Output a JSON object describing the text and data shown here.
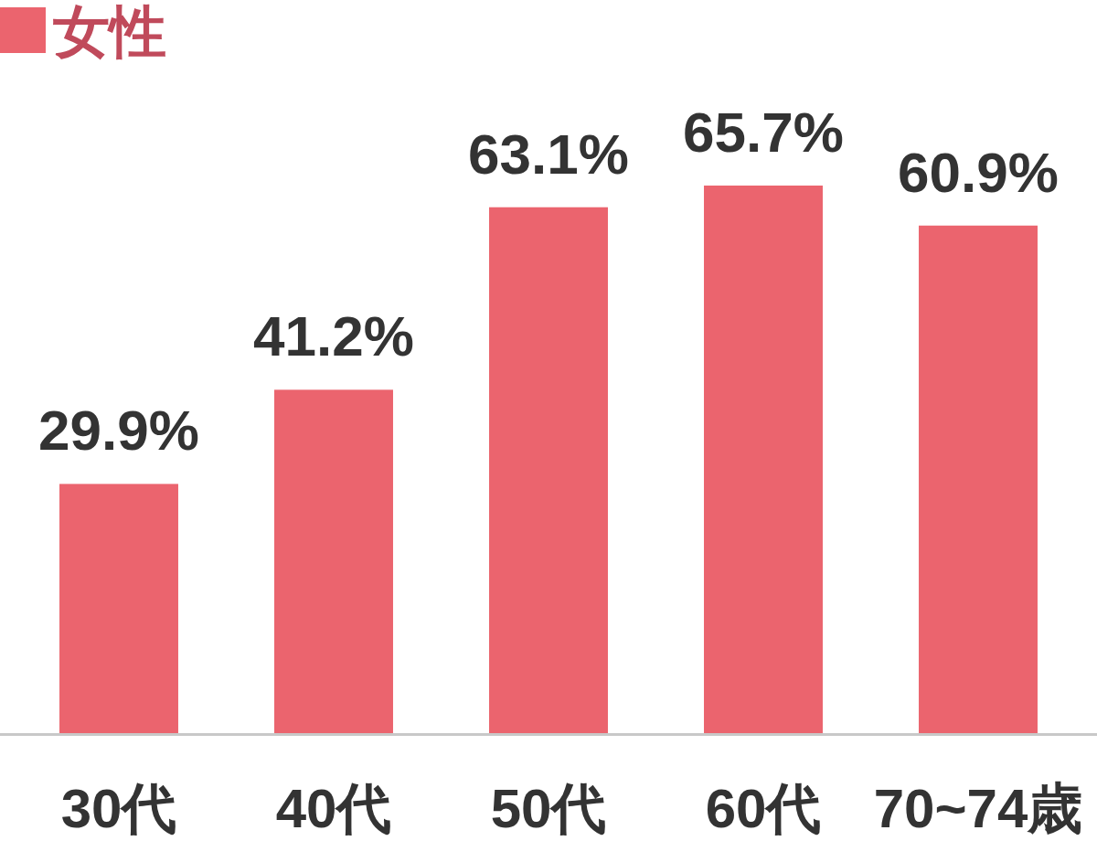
{
  "chart_data": {
    "type": "bar",
    "categories": [
      "30代",
      "40代",
      "50代",
      "60代",
      "70~74歳"
    ],
    "series": [
      {
        "name": "女性",
        "color": "#eb646e",
        "values": [
          29.9,
          41.2,
          63.1,
          65.7,
          60.9
        ],
        "value_labels": [
          "29.9%",
          "41.2%",
          "63.1%",
          "65.7%",
          "60.9%"
        ]
      }
    ],
    "legend": "top left"
  }
}
